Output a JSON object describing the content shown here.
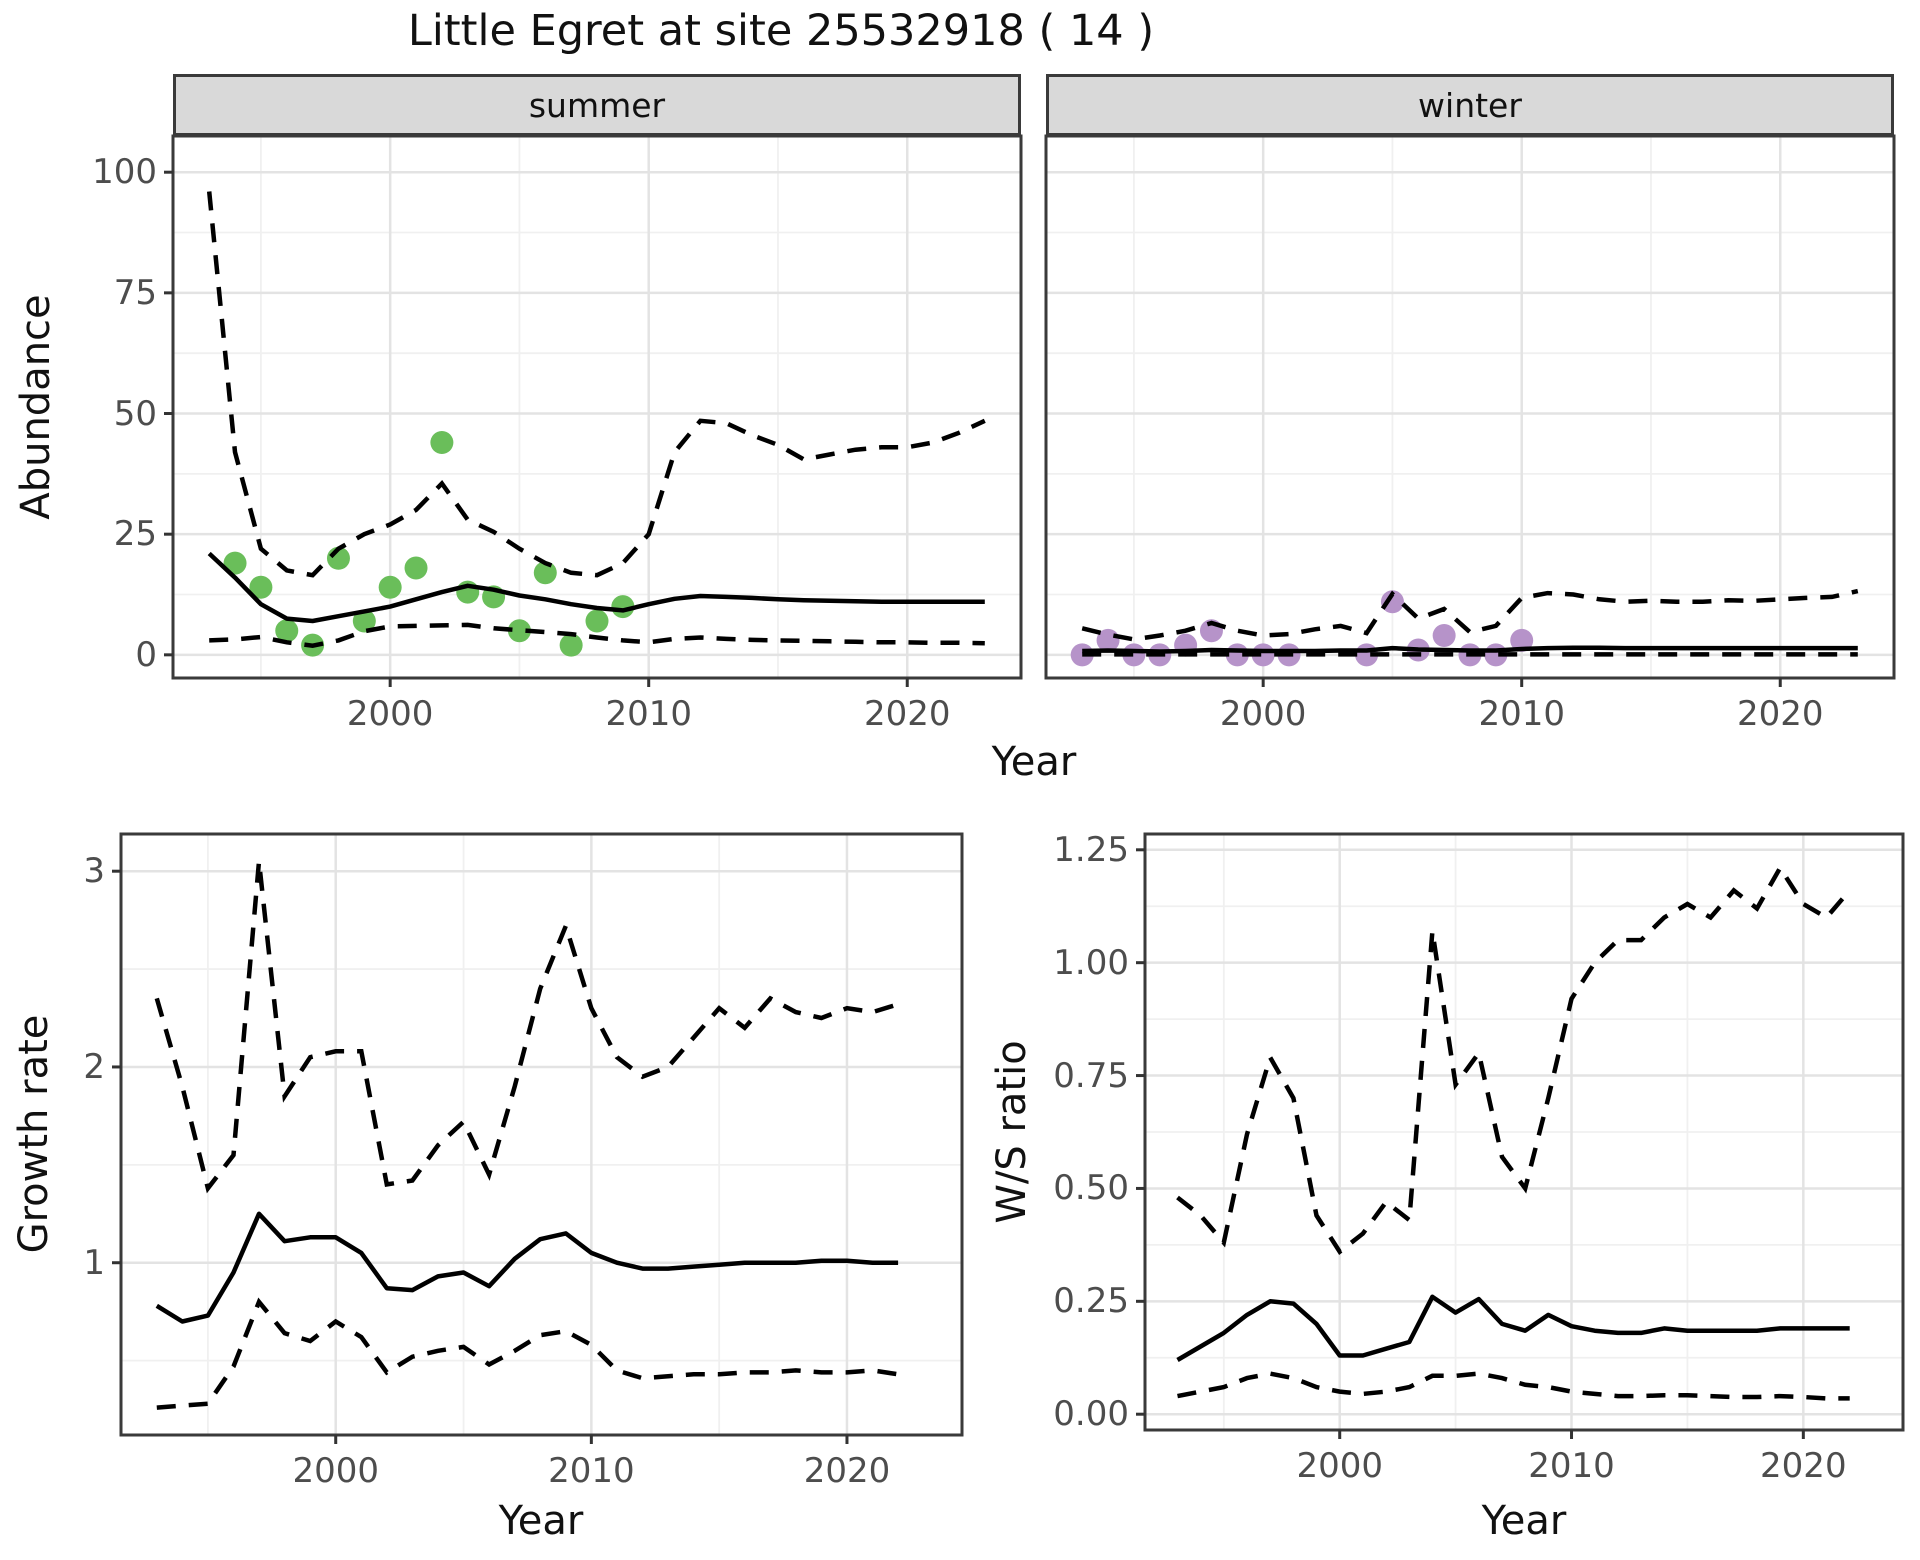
{
  "title": "Little Egret at site 25532918 ( 14 )",
  "colors": {
    "summer_points": "#6abe5a",
    "winter_points": "#b693c9",
    "line": "#000000",
    "strip_fill": "#d9d9d9",
    "panel_border": "#3a3a3a",
    "grid_major": "#e3e3e3",
    "grid_minor": "#f0f0f0",
    "tick_label": "#4d4d4d"
  },
  "chart_data": [
    {
      "id": "abundance-summer",
      "type": "line",
      "facet_label": "summer",
      "xlabel": "Year",
      "ylabel": "Abundance",
      "grid": true,
      "legend": "none",
      "x_range": [
        1991.6,
        2024.4
      ],
      "y_range": [
        -4.8,
        107.5
      ],
      "x_ticks": [
        2000,
        2010,
        2020
      ],
      "x_tick_labels": [
        "2000",
        "2010",
        "2020"
      ],
      "y_ticks": [
        0,
        25,
        50,
        75,
        100
      ],
      "y_tick_labels": [
        "0",
        "25",
        "50",
        "75",
        "100"
      ],
      "years": [
        1993,
        1994,
        1995,
        1996,
        1997,
        1998,
        1999,
        2000,
        2001,
        2002,
        2003,
        2004,
        2005,
        2006,
        2007,
        2008,
        2009,
        2010,
        2011,
        2012,
        2013,
        2014,
        2015,
        2016,
        2017,
        2018,
        2019,
        2020,
        2021,
        2022,
        2023
      ],
      "median": [
        21,
        16,
        10.5,
        7.5,
        7,
        8,
        9,
        10,
        11.5,
        13,
        14.3,
        13.5,
        12.3,
        11.5,
        10.5,
        9.7,
        9.2,
        10.5,
        11.6,
        12.2,
        12,
        11.8,
        11.5,
        11.3,
        11.2,
        11.1,
        11,
        11,
        11,
        11,
        11
      ],
      "upper_ci": [
        96,
        42,
        22,
        17.5,
        16.5,
        22,
        25,
        27,
        30,
        35.5,
        28,
        25.5,
        22,
        19,
        17,
        16.5,
        19,
        25,
        42,
        48.5,
        48,
        45.5,
        43.5,
        40.5,
        41.5,
        42.5,
        43,
        43,
        44,
        46,
        48.5
      ],
      "lower_ci": [
        3,
        3.2,
        3.7,
        2.6,
        1.9,
        3,
        4.9,
        5.9,
        6,
        6.1,
        6.2,
        5.5,
        5.1,
        4.7,
        4.3,
        3.6,
        3,
        2.6,
        3.3,
        3.6,
        3.3,
        3.1,
        3,
        2.9,
        2.8,
        2.7,
        2.6,
        2.6,
        2.5,
        2.5,
        2.4
      ],
      "points": {
        "years": [
          1994,
          1995,
          1996,
          1997,
          1998,
          1999,
          2000,
          2001,
          2002,
          2003,
          2004,
          2005,
          2006,
          2007,
          2008,
          2009
        ],
        "values": [
          19,
          14,
          5,
          2,
          20,
          7,
          14,
          18,
          44,
          13,
          12,
          5,
          17,
          2,
          7,
          10
        ],
        "color": "#6abe5a"
      }
    },
    {
      "id": "abundance-winter",
      "type": "line",
      "facet_label": "winter",
      "xlabel": "Year",
      "ylabel": "Abundance",
      "grid": true,
      "legend": "none",
      "x_range": [
        1991.6,
        2024.4
      ],
      "y_range": [
        -4.8,
        107.5
      ],
      "x_ticks": [
        2000,
        2010,
        2020
      ],
      "x_tick_labels": [
        "2000",
        "2010",
        "2020"
      ],
      "y_ticks": [
        0,
        25,
        50,
        75,
        100
      ],
      "y_tick_labels": null,
      "years": [
        1993,
        1994,
        1995,
        1996,
        1997,
        1998,
        1999,
        2000,
        2001,
        2002,
        2003,
        2004,
        2005,
        2006,
        2007,
        2008,
        2009,
        2010,
        2011,
        2012,
        2013,
        2014,
        2015,
        2016,
        2017,
        2018,
        2019,
        2020,
        2021,
        2022,
        2023
      ],
      "median": [
        0.8,
        0.9,
        0.8,
        0.7,
        0.8,
        1,
        0.9,
        0.8,
        0.8,
        0.8,
        0.9,
        0.9,
        1.4,
        1.1,
        1,
        0.9,
        0.9,
        1.2,
        1.4,
        1.45,
        1.45,
        1.4,
        1.4,
        1.4,
        1.4,
        1.4,
        1.4,
        1.4,
        1.4,
        1.4,
        1.4
      ],
      "upper_ci": [
        5.5,
        4.2,
        3.2,
        4,
        5,
        6.6,
        5,
        4,
        4.3,
        5.3,
        6,
        4.5,
        12.6,
        7.5,
        9.5,
        4.7,
        6,
        11.8,
        12.8,
        12.5,
        11.5,
        11,
        11.2,
        11,
        11,
        11.3,
        11.2,
        11.5,
        11.8,
        12,
        13.2
      ],
      "lower_ci": [
        0.1,
        0.1,
        0.1,
        0.1,
        0.1,
        0.1,
        0.1,
        0.1,
        0.1,
        0.1,
        0.1,
        0.1,
        0.1,
        0.1,
        0.1,
        0.1,
        0.1,
        0.1,
        0.1,
        0.1,
        0.1,
        0.1,
        0.1,
        0.1,
        0.1,
        0.1,
        0.1,
        0.1,
        0.1,
        0.1,
        0.1
      ],
      "points": {
        "years": [
          1993,
          1994,
          1995,
          1996,
          1997,
          1998,
          1999,
          2000,
          2001,
          2004,
          2005,
          2006,
          2007,
          2008,
          2009,
          2010
        ],
        "values": [
          0,
          3,
          0,
          0,
          2,
          5,
          0,
          0,
          0,
          0,
          11,
          1,
          4,
          0,
          0,
          3
        ],
        "color": "#b693c9"
      }
    },
    {
      "id": "growth-rate",
      "type": "line",
      "facet_label": null,
      "xlabel": "Year",
      "ylabel": "Growth rate",
      "grid": true,
      "legend": "none",
      "x_range": [
        1991.6,
        2024.5
      ],
      "y_range": [
        0.12,
        3.19
      ],
      "x_ticks": [
        2000,
        2010,
        2020
      ],
      "x_tick_labels": [
        "2000",
        "2010",
        "2020"
      ],
      "y_ticks": [
        1,
        2,
        3
      ],
      "y_tick_labels": [
        "1",
        "2",
        "3"
      ],
      "years": [
        1993,
        1994,
        1995,
        1996,
        1997,
        1998,
        1999,
        2000,
        2001,
        2002,
        2003,
        2004,
        2005,
        2006,
        2007,
        2008,
        2009,
        2010,
        2011,
        2012,
        2013,
        2014,
        2015,
        2016,
        2017,
        2018,
        2019,
        2020,
        2021,
        2022
      ],
      "median": [
        0.78,
        0.7,
        0.73,
        0.95,
        1.25,
        1.11,
        1.13,
        1.13,
        1.05,
        0.87,
        0.86,
        0.93,
        0.95,
        0.88,
        1.02,
        1.12,
        1.15,
        1.05,
        1,
        0.97,
        0.97,
        0.98,
        0.99,
        1,
        1,
        1,
        1.01,
        1.01,
        1,
        1
      ],
      "upper_ci": [
        2.35,
        1.9,
        1.38,
        1.55,
        3.05,
        1.85,
        2.05,
        2.08,
        2.08,
        1.4,
        1.42,
        1.6,
        1.72,
        1.45,
        1.9,
        2.4,
        2.72,
        2.3,
        2.05,
        1.95,
        2,
        2.15,
        2.3,
        2.2,
        2.35,
        2.28,
        2.25,
        2.3,
        2.28,
        2.32
      ],
      "lower_ci": [
        0.26,
        0.27,
        0.28,
        0.47,
        0.8,
        0.64,
        0.6,
        0.7,
        0.62,
        0.44,
        0.52,
        0.55,
        0.57,
        0.48,
        0.55,
        0.63,
        0.65,
        0.58,
        0.45,
        0.41,
        0.42,
        0.43,
        0.43,
        0.44,
        0.44,
        0.45,
        0.44,
        0.44,
        0.45,
        0.43
      ],
      "points": null
    },
    {
      "id": "ws-ratio",
      "type": "line",
      "facet_label": null,
      "xlabel": "Year",
      "ylabel": "W/S ratio",
      "grid": true,
      "legend": "none",
      "x_range": [
        1991.6,
        2024.3
      ],
      "y_range": [
        -0.035,
        1.285
      ],
      "x_ticks": [
        2000,
        2010,
        2020
      ],
      "x_tick_labels": [
        "2000",
        "2010",
        "2020"
      ],
      "y_ticks": [
        0,
        0.25,
        0.5,
        0.75,
        1,
        1.25
      ],
      "y_tick_labels": [
        "0.00",
        "0.25",
        "0.50",
        "0.75",
        "1.00",
        "1.25"
      ],
      "years": [
        1993,
        1994,
        1995,
        1996,
        1997,
        1998,
        1999,
        2000,
        2001,
        2002,
        2003,
        2004,
        2005,
        2006,
        2007,
        2008,
        2009,
        2010,
        2011,
        2012,
        2013,
        2014,
        2015,
        2016,
        2017,
        2018,
        2019,
        2020,
        2021,
        2022
      ],
      "median": [
        0.12,
        0.15,
        0.18,
        0.22,
        0.25,
        0.245,
        0.2,
        0.13,
        0.13,
        0.145,
        0.16,
        0.26,
        0.225,
        0.255,
        0.2,
        0.185,
        0.22,
        0.195,
        0.185,
        0.18,
        0.18,
        0.19,
        0.185,
        0.185,
        0.185,
        0.185,
        0.19,
        0.19,
        0.19,
        0.19
      ],
      "upper_ci": [
        0.48,
        0.44,
        0.38,
        0.62,
        0.79,
        0.7,
        0.44,
        0.36,
        0.4,
        0.47,
        0.43,
        1.07,
        0.73,
        0.8,
        0.57,
        0.5,
        0.7,
        0.92,
        1,
        1.05,
        1.05,
        1.1,
        1.13,
        1.1,
        1.16,
        1.12,
        1.21,
        1.13,
        1.1,
        1.16
      ],
      "lower_ci": [
        0.04,
        0.05,
        0.06,
        0.08,
        0.09,
        0.08,
        0.06,
        0.05,
        0.045,
        0.05,
        0.06,
        0.085,
        0.085,
        0.09,
        0.08,
        0.065,
        0.06,
        0.05,
        0.045,
        0.04,
        0.04,
        0.042,
        0.042,
        0.04,
        0.038,
        0.038,
        0.04,
        0.038,
        0.035,
        0.035
      ],
      "points": null
    }
  ]
}
